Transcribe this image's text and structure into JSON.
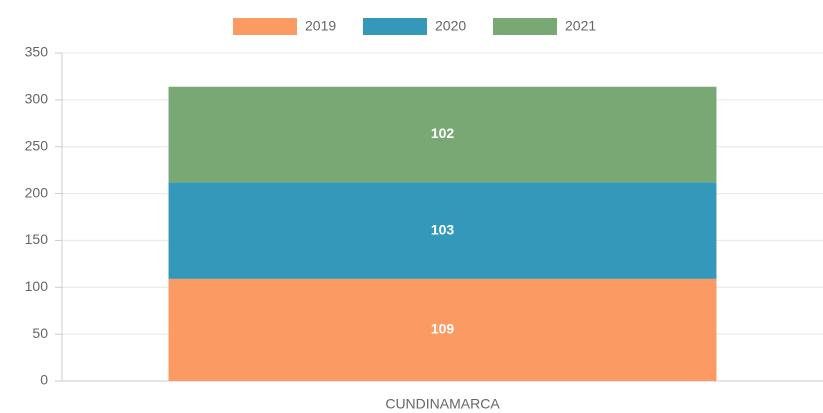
{
  "chart_data": {
    "type": "bar",
    "stacked": true,
    "categories": [
      "CUNDINAMARCA"
    ],
    "series": [
      {
        "name": "2019",
        "color": "#fb9a63",
        "values": [
          109
        ]
      },
      {
        "name": "2020",
        "color": "#3498bb",
        "values": [
          103
        ]
      },
      {
        "name": "2021",
        "color": "#7aa874",
        "values": [
          102
        ]
      }
    ],
    "ylim": [
      0,
      350
    ],
    "yticks": [
      0,
      50,
      100,
      150,
      200,
      250,
      300,
      350
    ],
    "grid": true,
    "legend": "top",
    "data_labels": true
  }
}
